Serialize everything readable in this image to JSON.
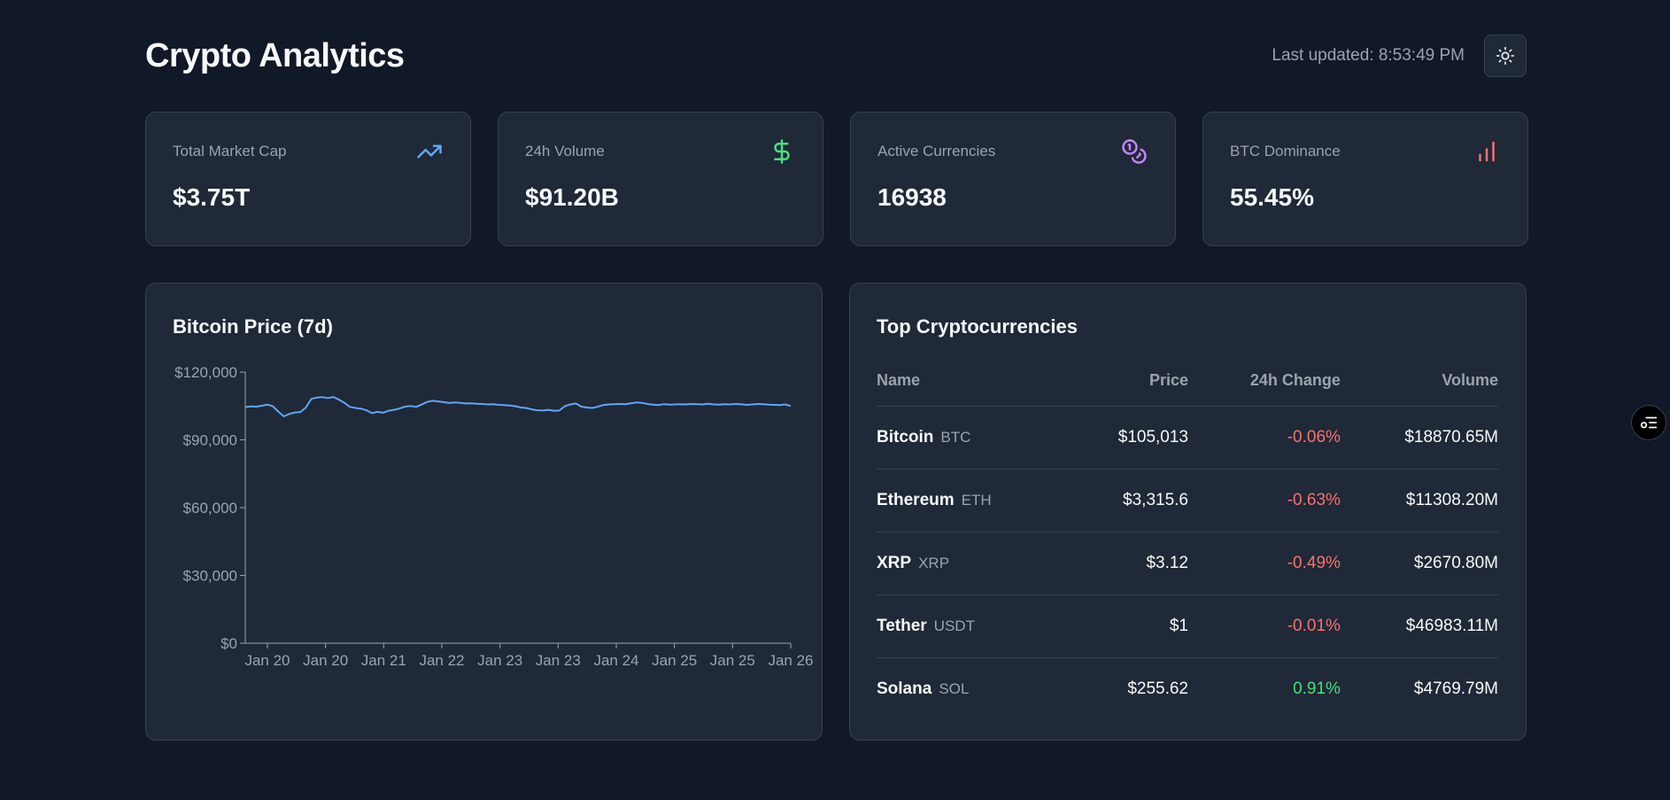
{
  "header": {
    "title": "Crypto Analytics",
    "last_updated": "Last updated: 8:53:49 PM"
  },
  "stats": [
    {
      "label": "Total Market Cap",
      "value": "$3.75T",
      "icon": "trending-up-icon",
      "color": "#60a5fa"
    },
    {
      "label": "24h Volume",
      "value": "$91.20B",
      "icon": "dollar-icon",
      "color": "#4ade80"
    },
    {
      "label": "Active Currencies",
      "value": "16938",
      "icon": "coins-icon",
      "color": "#c084fc"
    },
    {
      "label": "BTC Dominance",
      "value": "55.45%",
      "icon": "bar-chart-icon",
      "color": "#f87171"
    }
  ],
  "price_chart": {
    "title": "Bitcoin Price (7d)"
  },
  "chart_data": {
    "type": "line",
    "title": "Bitcoin Price (7d)",
    "xlabel": "",
    "ylabel": "",
    "ylim": [
      0,
      120000
    ],
    "y_ticks": [
      "$0",
      "$30,000",
      "$60,000",
      "$90,000",
      "$120,000"
    ],
    "x_ticks": [
      "Jan 20",
      "Jan 20",
      "Jan 21",
      "Jan 22",
      "Jan 23",
      "Jan 23",
      "Jan 24",
      "Jan 25",
      "Jan 25",
      "Jan 26"
    ],
    "color": "#60a5fa",
    "series": [
      {
        "values": [
          104500,
          104800,
          104700,
          105100,
          105600,
          104900,
          102500,
          100400,
          101500,
          102100,
          102300,
          104300,
          108200,
          108700,
          108900,
          108500,
          109000,
          107800,
          106400,
          104600,
          104100,
          103800,
          103100,
          101800,
          102400,
          102000,
          102900,
          103300,
          103900,
          104700,
          105000,
          104600,
          105600,
          106800,
          107300,
          107000,
          106700,
          106300,
          106600,
          106400,
          106100,
          106200,
          106000,
          105900,
          105700,
          105800,
          105500,
          105400,
          105200,
          104900,
          104300,
          104100,
          103500,
          103100,
          103000,
          103300,
          102900,
          103000,
          104900,
          105700,
          106100,
          104700,
          104300,
          104100,
          104700,
          105400,
          105700,
          105800,
          105900,
          105800,
          106200,
          106600,
          106400,
          105900,
          105600,
          105400,
          105800,
          105600,
          105700,
          105800,
          105700,
          105900,
          105800,
          105700,
          106000,
          105700,
          105600,
          105800,
          105700,
          105900,
          105800,
          105500,
          105700,
          105900,
          105800,
          105600,
          105500,
          105400,
          105700,
          105000
        ]
      }
    ]
  },
  "table": {
    "title": "Top Cryptocurrencies",
    "columns": [
      "Name",
      "Price",
      "24h Change",
      "Volume"
    ],
    "rows": [
      {
        "name": "Bitcoin",
        "symbol": "BTC",
        "price": "$105,013",
        "change": "-0.06%",
        "volume": "$18870.65M"
      },
      {
        "name": "Ethereum",
        "symbol": "ETH",
        "price": "$3,315.6",
        "change": "-0.63%",
        "volume": "$11308.20M"
      },
      {
        "name": "XRP",
        "symbol": "XRP",
        "price": "$3.12",
        "change": "-0.49%",
        "volume": "$2670.80M"
      },
      {
        "name": "Tether",
        "symbol": "USDT",
        "price": "$1",
        "change": "-0.01%",
        "volume": "$46983.11M"
      },
      {
        "name": "Solana",
        "symbol": "SOL",
        "price": "$255.62",
        "change": "0.91%",
        "volume": "$4769.79M"
      }
    ]
  },
  "colors": {
    "background": "#111827",
    "card": "#1f2937",
    "border": "#374151",
    "negative": "#f87171",
    "positive": "#4ade80"
  }
}
